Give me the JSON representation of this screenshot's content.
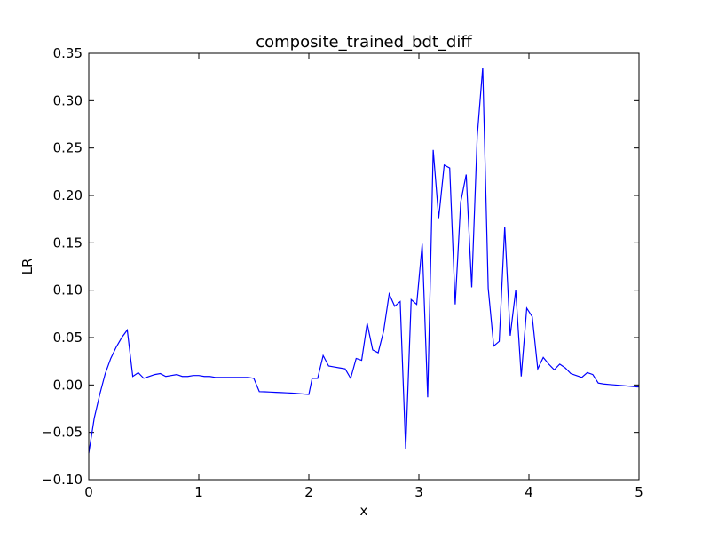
{
  "chart_data": {
    "type": "line",
    "title": "composite_trained_bdt_diff",
    "xlabel": "x",
    "ylabel": "LR",
    "xlim": [
      0,
      5
    ],
    "ylim": [
      -0.1,
      0.35
    ],
    "grid": false,
    "legend": "none",
    "x_ticks": [
      0,
      1,
      2,
      3,
      4,
      5
    ],
    "x_tick_labels": [
      "0",
      "1",
      "2",
      "3",
      "4",
      "5"
    ],
    "y_ticks": [
      -0.1,
      -0.05,
      0.0,
      0.05,
      0.1,
      0.15,
      0.2,
      0.25,
      0.3,
      0.35
    ],
    "y_tick_labels": [
      "−0.10",
      "−0.05",
      "0.00",
      "0.05",
      "0.10",
      "0.15",
      "0.20",
      "0.25",
      "0.30",
      "0.35"
    ],
    "series": [
      {
        "color": "#0000ff",
        "x": [
          0.0,
          0.05,
          0.1,
          0.15,
          0.2,
          0.25,
          0.3,
          0.35,
          0.4,
          0.45,
          0.5,
          0.55,
          0.6,
          0.65,
          0.7,
          0.75,
          0.8,
          0.85,
          0.9,
          0.95,
          1.0,
          1.05,
          1.1,
          1.15,
          1.2,
          1.25,
          1.3,
          1.35,
          1.4,
          1.45,
          1.5,
          1.55,
          1.6,
          1.65,
          1.7,
          1.75,
          1.8,
          1.85,
          1.9,
          1.95,
          2.0,
          2.03,
          2.08,
          2.13,
          2.18,
          2.23,
          2.28,
          2.33,
          2.38,
          2.43,
          2.48,
          2.53,
          2.58,
          2.63,
          2.68,
          2.73,
          2.78,
          2.83,
          2.88,
          2.93,
          2.98,
          3.03,
          3.08,
          3.13,
          3.18,
          3.23,
          3.28,
          3.33,
          3.38,
          3.43,
          3.48,
          3.53,
          3.58,
          3.63,
          3.68,
          3.73,
          3.78,
          3.83,
          3.88,
          3.93,
          3.98,
          4.03,
          4.08,
          4.13,
          4.18,
          4.23,
          4.28,
          4.33,
          4.38,
          4.43,
          4.48,
          4.53,
          4.58,
          4.63,
          4.68,
          4.73,
          4.78,
          4.83,
          4.88,
          4.93,
          4.98,
          5.0
        ],
        "y": [
          -0.072,
          -0.035,
          -0.01,
          0.012,
          0.028,
          0.04,
          0.05,
          0.058,
          0.009,
          0.013,
          0.007,
          0.009,
          0.011,
          0.012,
          0.009,
          0.01,
          0.011,
          0.009,
          0.009,
          0.01,
          0.01,
          0.009,
          0.009,
          0.008,
          0.008,
          0.008,
          0.008,
          0.008,
          0.008,
          0.008,
          0.007,
          -0.007,
          -0.0072,
          -0.0075,
          -0.0078,
          -0.008,
          -0.0083,
          -0.0086,
          -0.009,
          -0.0095,
          -0.01,
          0.007,
          0.007,
          0.031,
          0.02,
          0.019,
          0.018,
          0.017,
          0.007,
          0.028,
          0.026,
          0.065,
          0.037,
          0.034,
          0.057,
          0.096,
          0.083,
          0.088,
          -0.068,
          0.09,
          0.085,
          0.149,
          -0.013,
          0.248,
          0.176,
          0.232,
          0.229,
          0.085,
          0.193,
          0.222,
          0.103,
          0.262,
          0.335,
          0.102,
          0.041,
          0.046,
          0.167,
          0.052,
          0.1,
          0.009,
          0.081,
          0.072,
          0.017,
          0.029,
          0.022,
          0.016,
          0.022,
          0.018,
          0.012,
          0.01,
          0.008,
          0.013,
          0.011,
          0.002,
          0.001,
          0.0005,
          0.0,
          -0.0005,
          -0.001,
          -0.0015,
          -0.002,
          -0.002
        ]
      }
    ]
  }
}
